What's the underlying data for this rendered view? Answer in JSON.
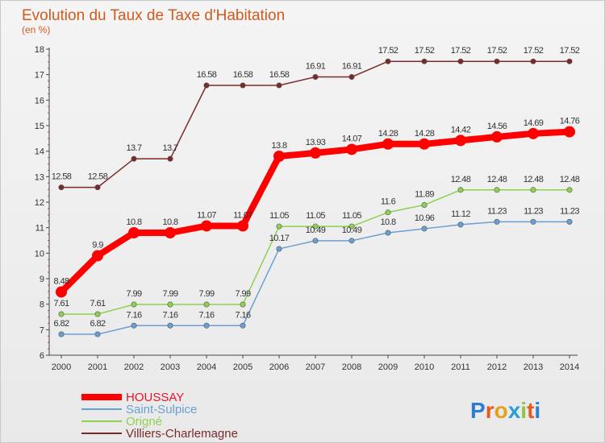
{
  "chart_data": {
    "type": "line",
    "title": "Evolution du Taux de Taxe d'Habitation",
    "subtitle": "(en %)",
    "x": [
      "2000",
      "2001",
      "2002",
      "2003",
      "2004",
      "2005",
      "2006",
      "2007",
      "2008",
      "2009",
      "2010",
      "2011",
      "2012",
      "2013",
      "2014"
    ],
    "ylim": [
      6,
      18
    ],
    "yticks": [
      "6",
      "7",
      "8",
      "9",
      "10",
      "11",
      "12",
      "13",
      "14",
      "15",
      "16",
      "17",
      "18"
    ],
    "grid": false,
    "legend_position": "bottom-left",
    "series": [
      {
        "name": "Villiers-Charlemagne",
        "color": "#7a2a2a",
        "values": [
          12.58,
          12.58,
          13.7,
          13.7,
          16.58,
          16.58,
          16.58,
          16.91,
          16.91,
          17.52,
          17.52,
          17.52,
          17.52,
          17.52,
          17.52
        ],
        "labels": [
          "12.58",
          "12.58",
          "13.7",
          "13.7",
          "16.58",
          "16.58",
          "16.58",
          "16.91",
          "16.91",
          "17.52",
          "17.52",
          "17.52",
          "17.52",
          "17.52",
          "17.52"
        ]
      },
      {
        "name": "Origné",
        "color": "#8fd14f",
        "values": [
          7.61,
          7.61,
          7.99,
          7.99,
          7.99,
          7.99,
          11.05,
          11.05,
          11.05,
          11.6,
          11.89,
          12.48,
          12.48,
          12.48,
          12.48
        ],
        "labels": [
          "7.61",
          "7.61",
          "7.99",
          "7.99",
          "7.99",
          "7.99",
          "11.05",
          "11.05",
          "11.05",
          "11.6",
          "11.89",
          "12.48",
          "12.48",
          "12.48",
          "12.48"
        ]
      },
      {
        "name": "Saint-Sulpice",
        "color": "#6a9fd4",
        "values": [
          6.82,
          6.82,
          7.16,
          7.16,
          7.16,
          7.16,
          10.17,
          10.49,
          10.49,
          10.8,
          10.96,
          11.12,
          11.23,
          11.23,
          11.23
        ],
        "labels": [
          "6.82",
          "6.82",
          "7.16",
          "7.16",
          "7.16",
          "7.16",
          "10.17",
          "10.49",
          "10.49",
          "10.8",
          "10.96",
          "11.12",
          "11.23",
          "11.23",
          "11.23"
        ]
      },
      {
        "name": "HOUSSAY",
        "color": "#ff0000",
        "values": [
          8.48,
          9.9,
          10.8,
          10.8,
          11.07,
          11.07,
          13.8,
          13.93,
          14.07,
          14.28,
          14.28,
          14.42,
          14.56,
          14.69,
          14.76
        ],
        "labels": [
          "8.48",
          "9.9",
          "10.8",
          "10.8",
          "11.07",
          "11.07",
          "13.8",
          "13.93",
          "14.07",
          "14.28",
          "14.28",
          "14.42",
          "14.56",
          "14.69",
          "14.76"
        ]
      }
    ],
    "legend": [
      "HOUSSAY",
      "Saint-Sulpice",
      "Origné",
      "Villiers-Charlemagne"
    ]
  },
  "logo": {
    "text": "Proxiti"
  }
}
